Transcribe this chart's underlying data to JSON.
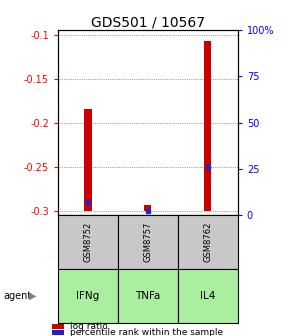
{
  "title": "GDS501 / 10567",
  "samples": [
    "GSM8752",
    "GSM8757",
    "GSM8762"
  ],
  "agents": [
    "IFNg",
    "TNFa",
    "IL4"
  ],
  "log_ratio_values": [
    -0.185,
    -0.294,
    -0.107
  ],
  "log_ratio_base": -0.3,
  "percentile_values": [
    0.07,
    0.02,
    0.26
  ],
  "ylim_left": [
    -0.305,
    -0.095
  ],
  "yticks_left": [
    -0.3,
    -0.25,
    -0.2,
    -0.15,
    -0.1
  ],
  "ytick_labels_right": [
    "0",
    "25",
    "50",
    "75",
    "100%"
  ],
  "bar_color": "#cc0000",
  "percentile_color": "#2222cc",
  "sample_bg": "#c8c8c8",
  "agent_bg": "#aaeea0",
  "title_fontsize": 10,
  "bar_width": 0.12
}
